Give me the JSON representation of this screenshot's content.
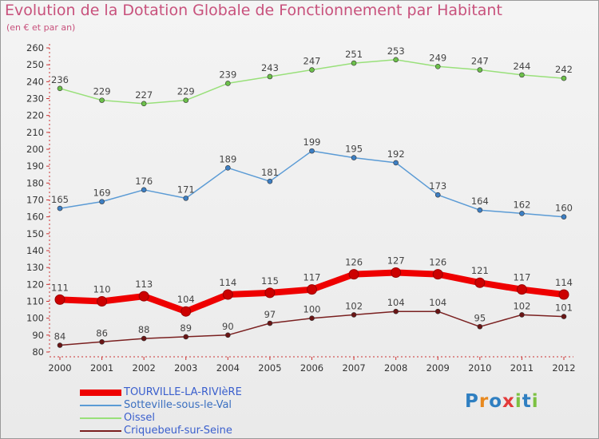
{
  "title": "Evolution de la Dotation Globale de Fonctionnement par Habitant",
  "subtitle": "(en € et par an)",
  "logo": {
    "text": "Proxiti",
    "letters": [
      {
        "ch": "P",
        "color": "#2f7fc1"
      },
      {
        "ch": "r",
        "color": "#e8891f"
      },
      {
        "ch": "o",
        "color": "#2f7fc1"
      },
      {
        "ch": "x",
        "color": "#e33b3b"
      },
      {
        "ch": "i",
        "color": "#7cc142"
      },
      {
        "ch": "t",
        "color": "#2f7fc1"
      },
      {
        "ch": "i",
        "color": "#7cc142"
      }
    ]
  },
  "chart_data": {
    "type": "line",
    "title": "Evolution de la Dotation Globale de Fonctionnement par Habitant",
    "subtitle": "(en € et par an)",
    "xlabel": "",
    "ylabel": "",
    "x": [
      2000,
      2001,
      2002,
      2003,
      2004,
      2005,
      2006,
      2007,
      2008,
      2009,
      2010,
      2011,
      2012
    ],
    "ylim": [
      80,
      260
    ],
    "yticks": [
      80,
      90,
      100,
      110,
      120,
      130,
      140,
      150,
      160,
      170,
      180,
      190,
      200,
      210,
      220,
      230,
      240,
      250,
      260
    ],
    "grid": false,
    "legend_position": "bottom-left",
    "series": [
      {
        "name": "TOURVILLE-LA-RIVIèRE",
        "color": "#ee0000",
        "marker_color": "#cc0000",
        "emphasis": true,
        "values": [
          111,
          110,
          113,
          104,
          114,
          115,
          117,
          126,
          127,
          126,
          121,
          117,
          114
        ]
      },
      {
        "name": "Sotteville-sous-le-Val",
        "color": "#5b9bd5",
        "marker_color": "#3d7fc4",
        "emphasis": false,
        "values": [
          165,
          169,
          176,
          171,
          189,
          181,
          199,
          195,
          192,
          173,
          164,
          162,
          160
        ]
      },
      {
        "name": "Oissel",
        "color": "#99e07a",
        "marker_color": "#6cc04a",
        "emphasis": false,
        "values": [
          236,
          229,
          227,
          229,
          239,
          243,
          247,
          251,
          253,
          249,
          247,
          244,
          242
        ]
      },
      {
        "name": "Criquebeuf-sur-Seine",
        "color": "#7a2020",
        "marker_color": "#6a1515",
        "emphasis": false,
        "values": [
          84,
          86,
          88,
          89,
          90,
          97,
          100,
          102,
          104,
          104,
          95,
          102,
          101
        ]
      }
    ]
  }
}
